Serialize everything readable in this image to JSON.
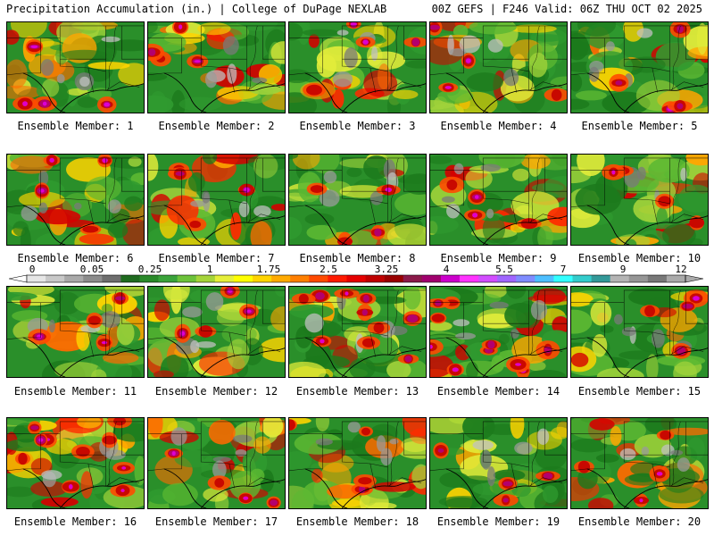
{
  "header": {
    "left": "Precipitation Accumulation (in.) | College of DuPage NEXLAB",
    "right": "00Z GEFS | F246 Valid: 06Z THU OCT 02 2025"
  },
  "members": [
    "Ensemble Member: 1",
    "Ensemble Member: 2",
    "Ensemble Member: 3",
    "Ensemble Member: 4",
    "Ensemble Member: 5",
    "Ensemble Member: 6",
    "Ensemble Member: 7",
    "Ensemble Member: 8",
    "Ensemble Member: 9",
    "Ensemble Member: 10",
    "Ensemble Member: 11",
    "Ensemble Member: 12",
    "Ensemble Member: 13",
    "Ensemble Member: 14",
    "Ensemble Member: 15",
    "Ensemble Member: 16",
    "Ensemble Member: 17",
    "Ensemble Member: 18",
    "Ensemble Member: 19",
    "Ensemble Member: 20"
  ],
  "colorbar": {
    "labels": [
      "0",
      "0.05",
      "0.25",
      "1",
      "1.75",
      "2.5",
      "3.25",
      "4",
      "5.5",
      "7",
      "9",
      "12"
    ],
    "colors": [
      "#e6e6e6",
      "#c8c8c8",
      "#a9a9a9",
      "#8c8c8c",
      "#6e6e6e",
      "#1f6b1f",
      "#2a8a2a",
      "#3aa33a",
      "#6cc23a",
      "#a5d43a",
      "#e6ef3a",
      "#ffff00",
      "#ffd400",
      "#ffaa00",
      "#ff7f00",
      "#ff4a00",
      "#ff1a00",
      "#e60000",
      "#bf0000",
      "#990000",
      "#8b1a4a",
      "#a0006e",
      "#cc00cc",
      "#ff33ff",
      "#d24dff",
      "#a066ff",
      "#7f8cff",
      "#4dbfff",
      "#33ffff",
      "#33cccc",
      "#339999",
      "#b4b4b4",
      "#969696",
      "#787878",
      "#aaaaaa"
    ]
  }
}
